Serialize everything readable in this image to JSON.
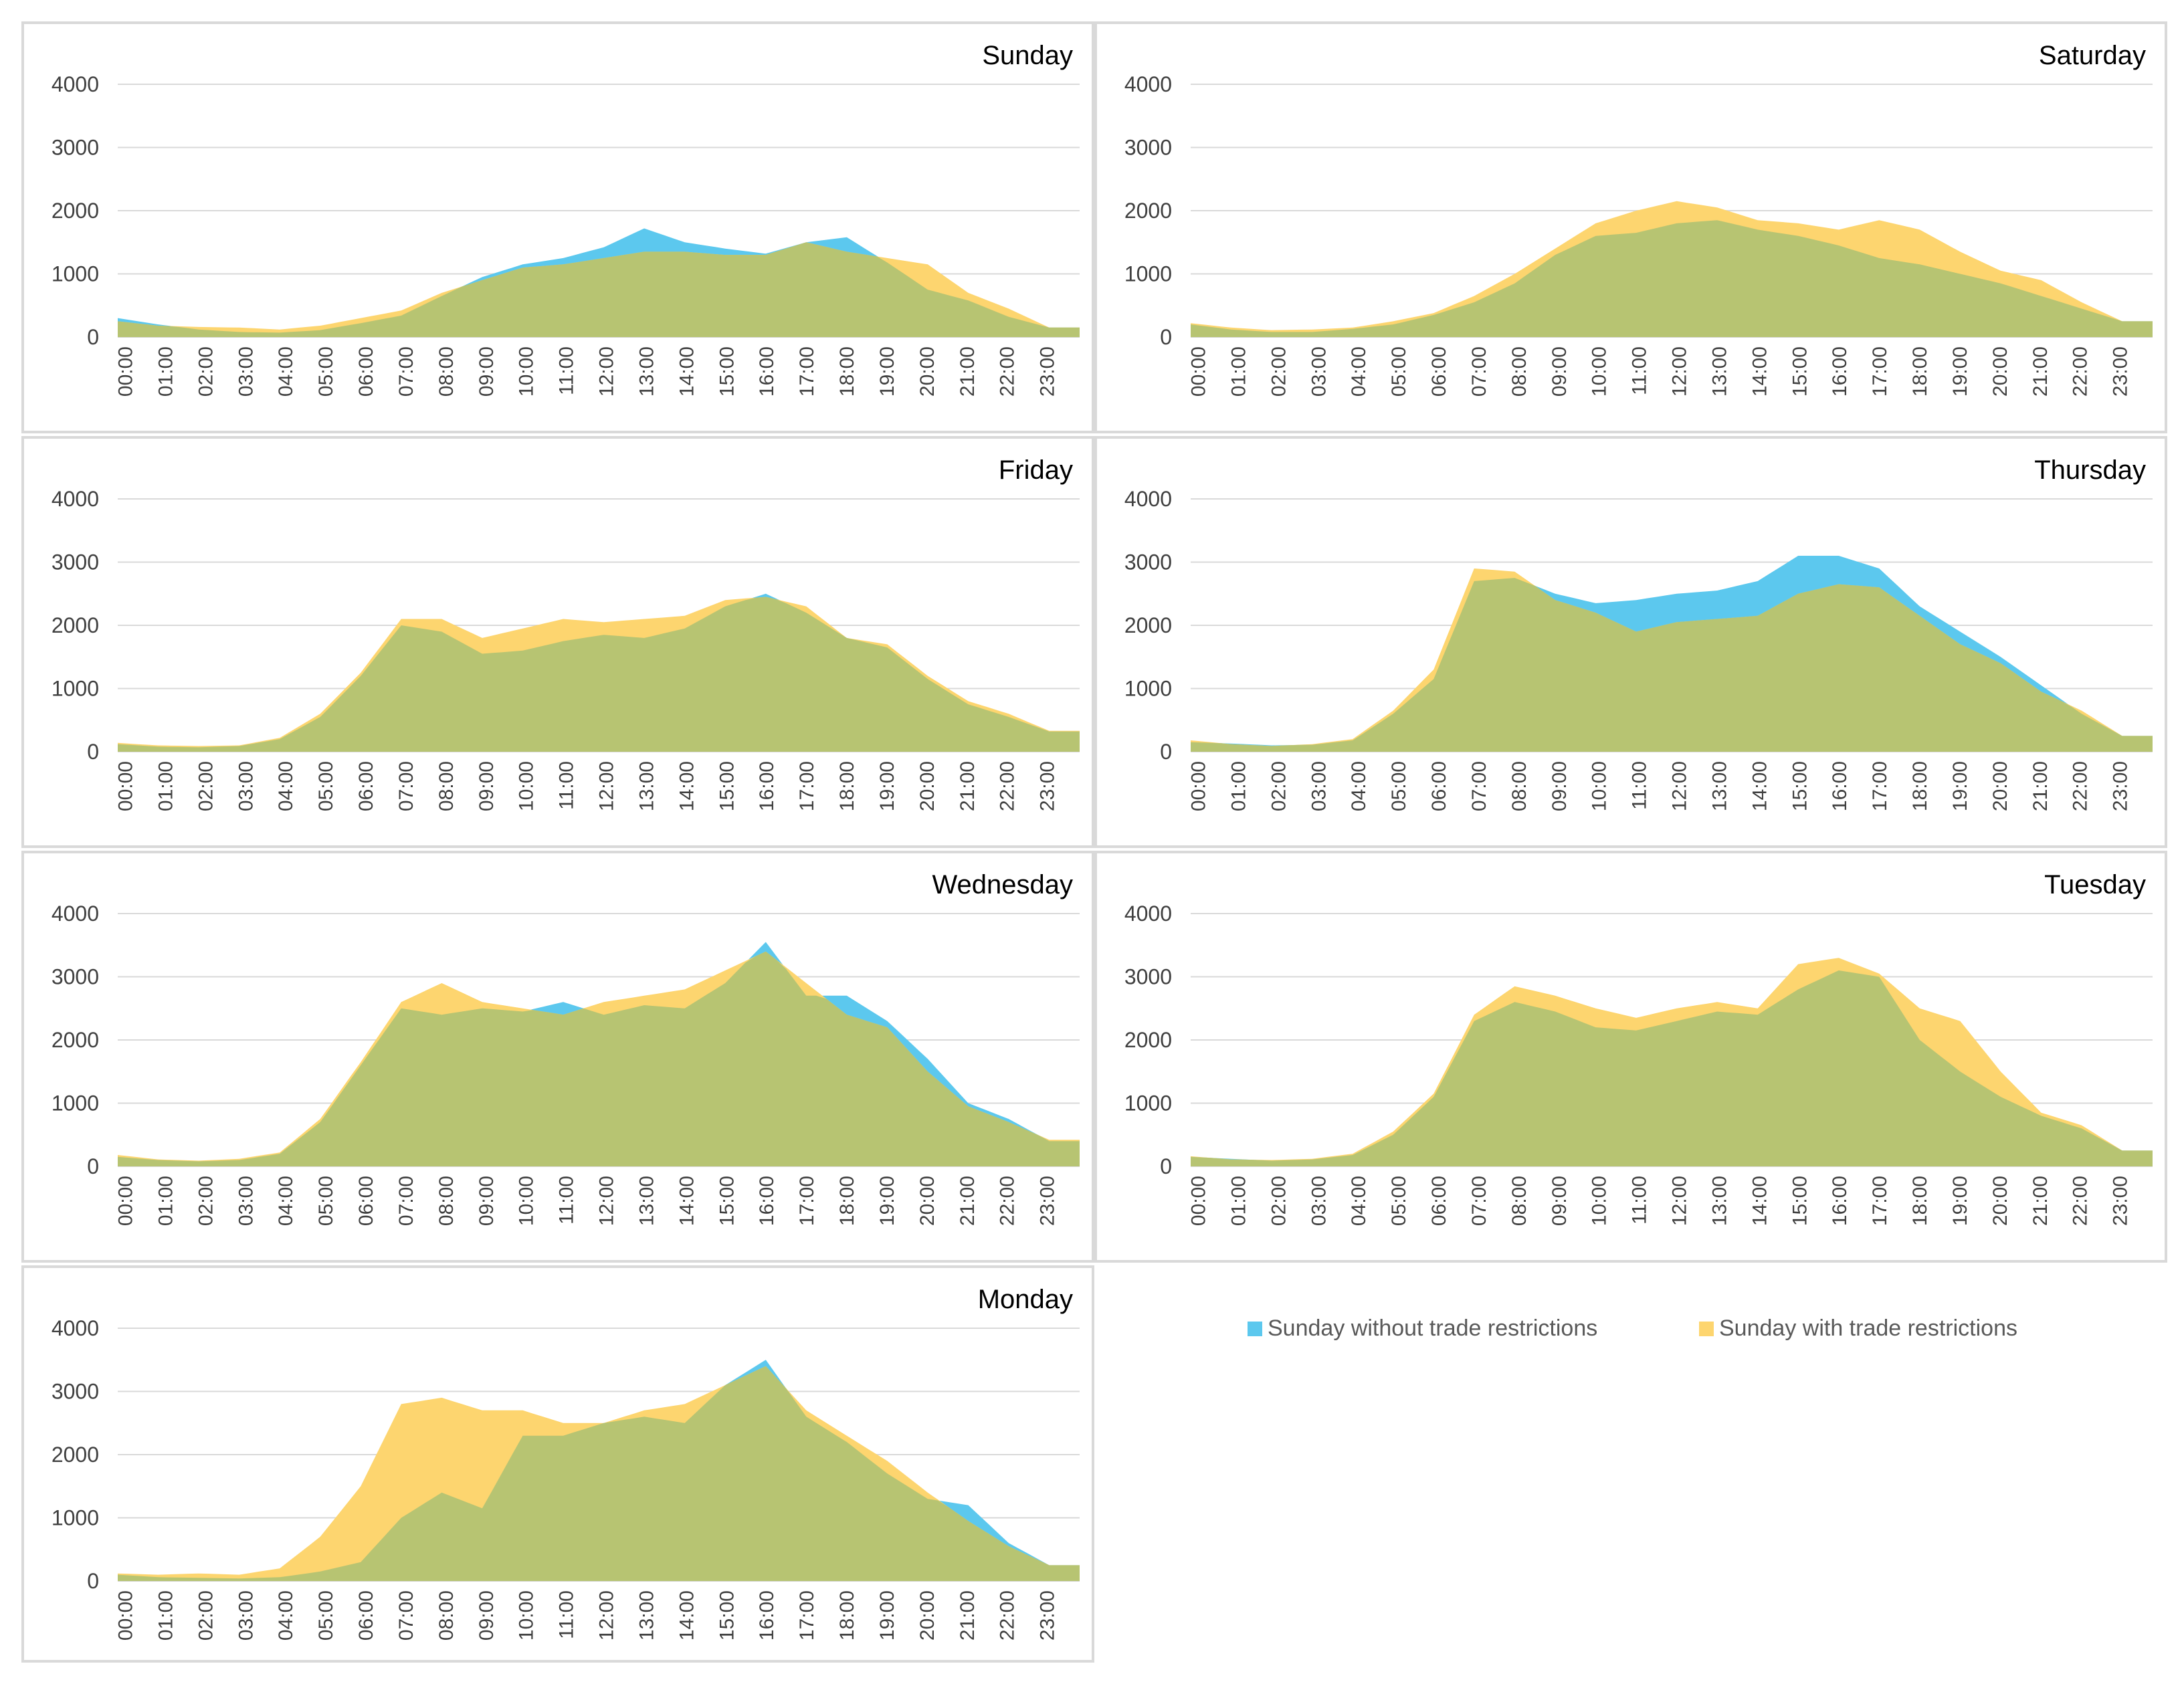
{
  "legend": {
    "without_label": "Sunday without trade restrictions",
    "with_label": "Sunday with trade restrictions"
  },
  "colors": {
    "without": "#5cc8ee",
    "with": "#fdd56f",
    "overlap": "#b7c472",
    "grid": "#d9d9d9",
    "frame": "#d9d9d9"
  },
  "chart_data": [
    {
      "type": "area",
      "title": "Sunday",
      "categories": [
        "00:00",
        "01:00",
        "02:00",
        "03:00",
        "04:00",
        "05:00",
        "06:00",
        "07:00",
        "08:00",
        "09:00",
        "10:00",
        "11:00",
        "12:00",
        "13:00",
        "14:00",
        "15:00",
        "16:00",
        "17:00",
        "18:00",
        "19:00",
        "20:00",
        "21:00",
        "22:00",
        "23:00"
      ],
      "ylim": [
        0,
        4000
      ],
      "yticks": [
        0,
        1000,
        2000,
        3000,
        4000
      ],
      "series": [
        {
          "name": "Sunday without trade restrictions",
          "values": [
            300,
            200,
            120,
            80,
            70,
            110,
            220,
            340,
            650,
            950,
            1150,
            1250,
            1420,
            1720,
            1500,
            1400,
            1320,
            1500,
            1580,
            1180,
            750,
            580,
            320,
            150
          ]
        },
        {
          "name": "Sunday with trade restrictions",
          "values": [
            250,
            180,
            160,
            150,
            120,
            180,
            300,
            420,
            700,
            900,
            1100,
            1150,
            1250,
            1350,
            1350,
            1300,
            1300,
            1500,
            1350,
            1250,
            1150,
            700,
            450,
            150
          ]
        }
      ]
    },
    {
      "type": "area",
      "title": "Saturday",
      "categories": [
        "00:00",
        "01:00",
        "02:00",
        "03:00",
        "04:00",
        "05:00",
        "06:00",
        "07:00",
        "08:00",
        "09:00",
        "10:00",
        "11:00",
        "12:00",
        "13:00",
        "14:00",
        "15:00",
        "16:00",
        "17:00",
        "18:00",
        "19:00",
        "20:00",
        "21:00",
        "22:00",
        "23:00"
      ],
      "ylim": [
        0,
        4000
      ],
      "yticks": [
        0,
        1000,
        2000,
        3000,
        4000
      ],
      "series": [
        {
          "name": "Sunday without trade restrictions",
          "values": [
            200,
            120,
            80,
            80,
            130,
            200,
            350,
            550,
            850,
            1300,
            1600,
            1650,
            1800,
            1850,
            1700,
            1600,
            1450,
            1250,
            1150,
            1000,
            850,
            650,
            450,
            250
          ]
        },
        {
          "name": "Sunday with trade restrictions",
          "values": [
            220,
            150,
            110,
            120,
            150,
            250,
            380,
            650,
            1000,
            1400,
            1800,
            2000,
            2150,
            2050,
            1850,
            1800,
            1700,
            1850,
            1700,
            1350,
            1050,
            900,
            550,
            250
          ]
        }
      ]
    },
    {
      "type": "area",
      "title": "Friday",
      "categories": [
        "00:00",
        "01:00",
        "02:00",
        "03:00",
        "04:00",
        "05:00",
        "06:00",
        "07:00",
        "08:00",
        "09:00",
        "10:00",
        "11:00",
        "12:00",
        "13:00",
        "14:00",
        "15:00",
        "16:00",
        "17:00",
        "18:00",
        "19:00",
        "20:00",
        "21:00",
        "22:00",
        "23:00"
      ],
      "ylim": [
        0,
        4000
      ],
      "yticks": [
        0,
        1000,
        2000,
        3000,
        4000
      ],
      "series": [
        {
          "name": "Sunday without trade restrictions",
          "values": [
            120,
            80,
            70,
            90,
            200,
            550,
            1200,
            2000,
            1900,
            1550,
            1600,
            1750,
            1850,
            1800,
            1950,
            2300,
            2500,
            2200,
            1800,
            1650,
            1150,
            750,
            550,
            320
          ]
        },
        {
          "name": "Sunday with trade restrictions",
          "values": [
            140,
            100,
            90,
            100,
            220,
            600,
            1250,
            2100,
            2100,
            1800,
            1950,
            2100,
            2050,
            2100,
            2150,
            2400,
            2450,
            2300,
            1800,
            1700,
            1200,
            800,
            600,
            330
          ]
        }
      ]
    },
    {
      "type": "area",
      "title": "Thursday",
      "categories": [
        "00:00",
        "01:00",
        "02:00",
        "03:00",
        "04:00",
        "05:00",
        "06:00",
        "07:00",
        "08:00",
        "09:00",
        "10:00",
        "11:00",
        "12:00",
        "13:00",
        "14:00",
        "15:00",
        "16:00",
        "17:00",
        "18:00",
        "19:00",
        "20:00",
        "21:00",
        "22:00",
        "23:00"
      ],
      "ylim": [
        0,
        4000
      ],
      "yticks": [
        0,
        1000,
        2000,
        3000,
        4000
      ],
      "series": [
        {
          "name": "Sunday without trade restrictions",
          "values": [
            150,
            130,
            100,
            110,
            180,
            600,
            1150,
            2700,
            2750,
            2500,
            2350,
            2400,
            2500,
            2550,
            2700,
            3100,
            3100,
            2900,
            2300,
            1900,
            1500,
            1050,
            600,
            250
          ]
        },
        {
          "name": "Sunday with trade restrictions",
          "values": [
            180,
            120,
            90,
            120,
            200,
            650,
            1300,
            2900,
            2850,
            2400,
            2200,
            1900,
            2050,
            2100,
            2150,
            2500,
            2650,
            2600,
            2150,
            1700,
            1400,
            950,
            650,
            250
          ]
        }
      ]
    },
    {
      "type": "area",
      "title": "Wednesday",
      "categories": [
        "00:00",
        "01:00",
        "02:00",
        "03:00",
        "04:00",
        "05:00",
        "06:00",
        "07:00",
        "08:00",
        "09:00",
        "10:00",
        "11:00",
        "12:00",
        "13:00",
        "14:00",
        "15:00",
        "16:00",
        "17:00",
        "18:00",
        "19:00",
        "20:00",
        "21:00",
        "22:00",
        "23:00"
      ],
      "ylim": [
        0,
        4000
      ],
      "yticks": [
        0,
        1000,
        2000,
        3000,
        4000
      ],
      "series": [
        {
          "name": "Sunday without trade restrictions",
          "values": [
            150,
            100,
            80,
            100,
            200,
            700,
            1600,
            2500,
            2400,
            2500,
            2450,
            2600,
            2400,
            2550,
            2500,
            2900,
            3550,
            2700,
            2700,
            2300,
            1700,
            1000,
            750,
            400
          ]
        },
        {
          "name": "Sunday with trade restrictions",
          "values": [
            180,
            110,
            90,
            120,
            220,
            750,
            1650,
            2600,
            2900,
            2600,
            2500,
            2400,
            2600,
            2700,
            2800,
            3100,
            3400,
            2900,
            2400,
            2200,
            1500,
            950,
            700,
            420
          ]
        }
      ]
    },
    {
      "type": "area",
      "title": "Tuesday",
      "categories": [
        "00:00",
        "01:00",
        "02:00",
        "03:00",
        "04:00",
        "05:00",
        "06:00",
        "07:00",
        "08:00",
        "09:00",
        "10:00",
        "11:00",
        "12:00",
        "13:00",
        "14:00",
        "15:00",
        "16:00",
        "17:00",
        "18:00",
        "19:00",
        "20:00",
        "21:00",
        "22:00",
        "23:00"
      ],
      "ylim": [
        0,
        4000
      ],
      "yticks": [
        0,
        1000,
        2000,
        3000,
        4000
      ],
      "series": [
        {
          "name": "Sunday without trade restrictions",
          "values": [
            150,
            120,
            90,
            110,
            180,
            500,
            1100,
            2300,
            2600,
            2450,
            2200,
            2150,
            2300,
            2450,
            2400,
            2800,
            3100,
            3000,
            2000,
            1500,
            1100,
            800,
            600,
            250
          ]
        },
        {
          "name": "Sunday with trade restrictions",
          "values": [
            160,
            110,
            100,
            120,
            200,
            550,
            1150,
            2400,
            2850,
            2700,
            2500,
            2350,
            2500,
            2600,
            2500,
            3200,
            3300,
            3050,
            2500,
            2300,
            1500,
            850,
            650,
            250
          ]
        }
      ]
    },
    {
      "type": "area",
      "title": "Monday",
      "categories": [
        "00:00",
        "01:00",
        "02:00",
        "03:00",
        "04:00",
        "05:00",
        "06:00",
        "07:00",
        "08:00",
        "09:00",
        "10:00",
        "11:00",
        "12:00",
        "13:00",
        "14:00",
        "15:00",
        "16:00",
        "17:00",
        "18:00",
        "19:00",
        "20:00",
        "21:00",
        "22:00",
        "23:00"
      ],
      "ylim": [
        0,
        4000
      ],
      "yticks": [
        0,
        1000,
        2000,
        3000,
        4000
      ],
      "series": [
        {
          "name": "Sunday without trade restrictions",
          "values": [
            100,
            60,
            50,
            40,
            60,
            150,
            300,
            1000,
            1400,
            1150,
            2300,
            2300,
            2500,
            2600,
            2500,
            3100,
            3500,
            2600,
            2200,
            1700,
            1300,
            1200,
            600,
            250
          ]
        },
        {
          "name": "Sunday with trade restrictions",
          "values": [
            120,
            100,
            120,
            100,
            200,
            700,
            1500,
            2800,
            2900,
            2700,
            2700,
            2500,
            2500,
            2700,
            2800,
            3100,
            3400,
            2700,
            2300,
            1900,
            1400,
            950,
            550,
            250
          ]
        }
      ]
    }
  ]
}
